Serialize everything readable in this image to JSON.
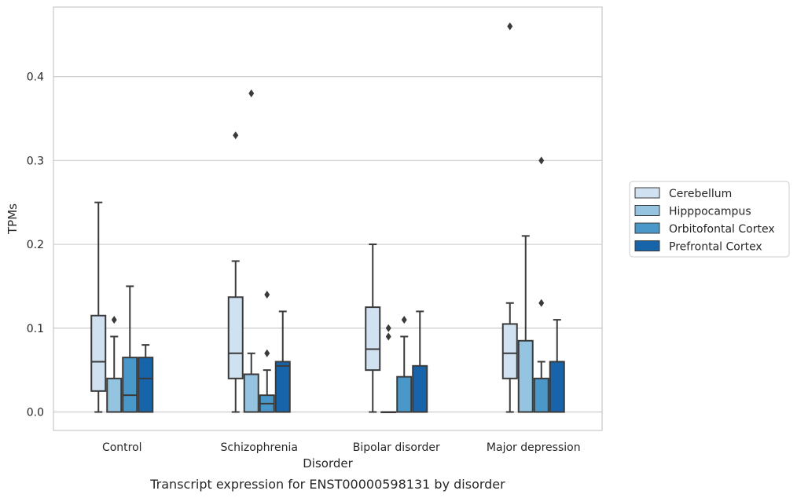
{
  "chart_data": {
    "type": "box",
    "title": "Transcript expression for ENST00000598131 by disorder",
    "xlabel": "Disorder",
    "ylabel": "TPMs",
    "categories": [
      "Control",
      "Schizophrenia",
      "Bipolar disorder",
      "Major depression"
    ],
    "ylim": [
      -0.022,
      0.483
    ],
    "yticks": [
      0.0,
      0.1,
      0.2,
      0.3,
      0.4
    ],
    "ytick_labels": [
      "0.0",
      "0.1",
      "0.2",
      "0.3",
      "0.4"
    ],
    "grid": "horizontal",
    "legend_position": "right",
    "series": [
      {
        "name": "Cerebellum",
        "color": "#d0e1f2",
        "boxes": [
          {
            "category": "Control",
            "whisker_low": 0.0,
            "q1": 0.025,
            "median": 0.06,
            "q3": 0.115,
            "whisker_high": 0.25,
            "outliers": []
          },
          {
            "category": "Schizophrenia",
            "whisker_low": 0.0,
            "q1": 0.04,
            "median": 0.07,
            "q3": 0.137,
            "whisker_high": 0.18,
            "outliers": [
              0.33
            ]
          },
          {
            "category": "Bipolar disorder",
            "whisker_low": 0.0,
            "q1": 0.05,
            "median": 0.075,
            "q3": 0.125,
            "whisker_high": 0.2,
            "outliers": []
          },
          {
            "category": "Major depression",
            "whisker_low": 0.0,
            "q1": 0.04,
            "median": 0.07,
            "q3": 0.105,
            "whisker_high": 0.13,
            "outliers": [
              0.46
            ]
          }
        ]
      },
      {
        "name": "Hipppocampus",
        "color": "#94c4df",
        "boxes": [
          {
            "category": "Control",
            "whisker_low": 0.0,
            "q1": 0.0,
            "median": 0.0,
            "q3": 0.04,
            "whisker_high": 0.09,
            "outliers": [
              0.11
            ]
          },
          {
            "category": "Schizophrenia",
            "whisker_low": 0.0,
            "q1": 0.0,
            "median": 0.0,
            "q3": 0.045,
            "whisker_high": 0.07,
            "outliers": [
              0.38
            ]
          },
          {
            "category": "Bipolar disorder",
            "whisker_low": 0.0,
            "q1": 0.0,
            "median": 0.0,
            "q3": 0.0,
            "whisker_high": 0.0,
            "outliers": [
              0.09,
              0.1
            ]
          },
          {
            "category": "Major depression",
            "whisker_low": 0.0,
            "q1": 0.0,
            "median": 0.0,
            "q3": 0.085,
            "whisker_high": 0.21,
            "outliers": []
          }
        ]
      },
      {
        "name": "Orbitofontal Cortex",
        "color": "#4a98c9",
        "boxes": [
          {
            "category": "Control",
            "whisker_low": 0.0,
            "q1": 0.0,
            "median": 0.02,
            "q3": 0.065,
            "whisker_high": 0.15,
            "outliers": []
          },
          {
            "category": "Schizophrenia",
            "whisker_low": 0.0,
            "q1": 0.0,
            "median": 0.01,
            "q3": 0.02,
            "whisker_high": 0.05,
            "outliers": [
              0.14,
              0.07
            ]
          },
          {
            "category": "Bipolar disorder",
            "whisker_low": 0.0,
            "q1": 0.0,
            "median": 0.0,
            "q3": 0.042,
            "whisker_high": 0.09,
            "outliers": [
              0.11
            ]
          },
          {
            "category": "Major depression",
            "whisker_low": 0.0,
            "q1": 0.0,
            "median": 0.0,
            "q3": 0.04,
            "whisker_high": 0.06,
            "outliers": [
              0.3,
              0.13
            ]
          }
        ]
      },
      {
        "name": "Prefrontal Cortex",
        "color": "#1764ab",
        "boxes": [
          {
            "category": "Control",
            "whisker_low": 0.0,
            "q1": 0.0,
            "median": 0.04,
            "q3": 0.065,
            "whisker_high": 0.08,
            "outliers": []
          },
          {
            "category": "Schizophrenia",
            "whisker_low": 0.0,
            "q1": 0.0,
            "median": 0.055,
            "q3": 0.06,
            "whisker_high": 0.12,
            "outliers": []
          },
          {
            "category": "Bipolar disorder",
            "whisker_low": 0.0,
            "q1": 0.0,
            "median": 0.0,
            "q3": 0.055,
            "whisker_high": 0.12,
            "outliers": []
          },
          {
            "category": "Major depression",
            "whisker_low": 0.0,
            "q1": 0.0,
            "median": 0.0,
            "q3": 0.06,
            "whisker_high": 0.11,
            "outliers": []
          }
        ]
      }
    ]
  }
}
